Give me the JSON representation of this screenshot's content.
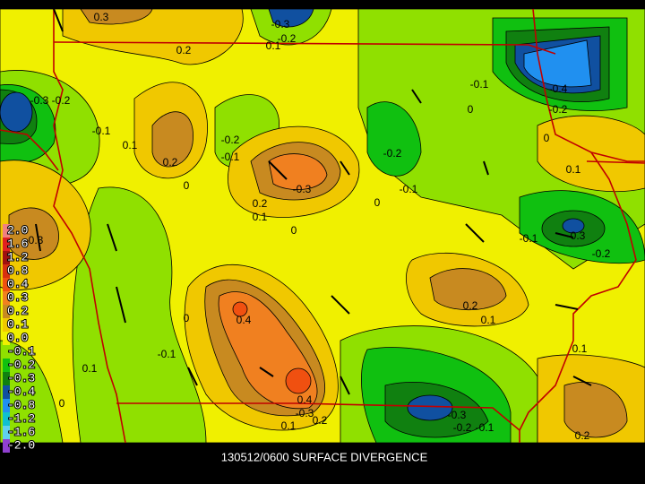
{
  "caption": "130512/0600 SURFACE DIVERGENCE",
  "legend": {
    "entries": [
      {
        "label": "2.0",
        "color": "#f08080"
      },
      {
        "label": "1.6",
        "color": "#e02020"
      },
      {
        "label": "1.2",
        "color": "#a01010"
      },
      {
        "label": "0.8",
        "color": "#d83010"
      },
      {
        "label": "0.4",
        "color": "#f05010"
      },
      {
        "label": "0.3",
        "color": "#f08020"
      },
      {
        "label": "0.2",
        "color": "#c88a20"
      },
      {
        "label": "0.1",
        "color": "#f0c800"
      },
      {
        "label": "0.0",
        "color": "#f0f000"
      },
      {
        "label": "-0.1",
        "color": "#90e000"
      },
      {
        "label": "-0.2",
        "color": "#10c010"
      },
      {
        "label": "-0.3",
        "color": "#108010"
      },
      {
        "label": "-0.4",
        "color": "#1050a0"
      },
      {
        "label": "-0.8",
        "color": "#2090f0"
      },
      {
        "label": "-1.2",
        "color": "#10c0d0"
      },
      {
        "label": "-1.6",
        "color": "#60d0f0"
      },
      {
        "label": "-2.0",
        "color": "#9040d0"
      }
    ]
  },
  "contour_labels": [
    "0.3",
    "0.2",
    "-0.3",
    "-0.2",
    "0.1",
    "-0.3",
    "-0.2",
    "-0.1",
    "0.1",
    "0.2",
    "-0.2",
    "-0.1",
    "-0.3",
    "0.2",
    "0.1",
    "0",
    "0",
    "0",
    "-0.2",
    "-0.1",
    "-0.1",
    "0",
    "-0.4",
    "-0.2",
    "0",
    "0.1",
    "-0.1",
    "-0.3",
    "-0.2",
    "0.3",
    "0.4",
    "0",
    "-0.1",
    "0.1",
    "0.2",
    "0.1",
    "0.1",
    "0.4",
    "-0.3",
    "0.2",
    "0.1",
    "-0.3",
    "-0.2",
    "-0.1",
    "0.2",
    "0"
  ]
}
